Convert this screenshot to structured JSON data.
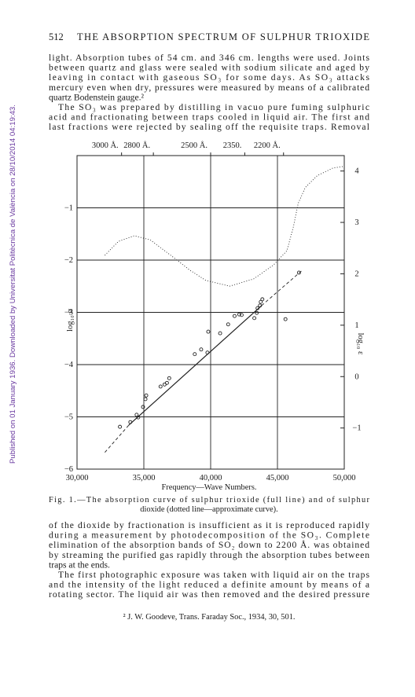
{
  "header": {
    "page_number": "512",
    "running_title": "THE ABSORPTION SPECTRUM OF SULPHUR TRIOXIDE"
  },
  "sidebar": "Published on 01 January 1936. Downloaded by Universitat Politècnica de València on 28/10/2014 04:19:43.",
  "text_before": [
    "light.  Absorption tubes of 54 cm. and 346 cm. lengths were used.  Joints",
    "between quartz and glass were sealed with sodium silicate and aged by",
    "leaving in contact with gaseous SO₃ for some days.  As SO₃ attacks",
    "mercury even when dry, pressures were measured by means of a calibrated",
    "quartz Bodenstein gauge.²",
    "The SO₃ was prepared by distilling in vacuo pure fuming sulphuric",
    "acid and fractionating between traps cooled in liquid air.  The first and",
    "last fractions were rejected by sealing off the requisite traps.  Removal"
  ],
  "chart_data": {
    "type": "line",
    "xlabel": "Frequency—Wave Numbers.",
    "ylabel": "log₁₀ α",
    "y2label": "log₁₀ ε",
    "xlim": [
      30000,
      50000
    ],
    "xticks": [
      {
        "value": 30000,
        "label": "30,000"
      },
      {
        "value": 35000,
        "label": "35,000"
      },
      {
        "value": 40000,
        "label": "40,000"
      },
      {
        "value": 45000,
        "label": "45,000"
      },
      {
        "value": 50000,
        "label": "50,000"
      }
    ],
    "top_ticks": [
      {
        "value": 33333,
        "label": "3000 Å."
      },
      {
        "value": 35714,
        "label": "2800 Å."
      },
      {
        "value": 40000,
        "label": "2500 Å."
      },
      {
        "value": 42553,
        "label": "2350."
      },
      {
        "value": 45455,
        "label": "2200 Å."
      }
    ],
    "ylim": [
      -6,
      0
    ],
    "yticks": [
      {
        "value": -1,
        "label": "−1"
      },
      {
        "value": -2,
        "label": "−2"
      },
      {
        "value": -3,
        "label": "−3"
      },
      {
        "value": -4,
        "label": "−4"
      },
      {
        "value": -5,
        "label": "−5"
      },
      {
        "value": -6,
        "label": "−6"
      }
    ],
    "y2lim": [
      -1.8,
      4.3
    ],
    "y2ticks": [
      4,
      3,
      2,
      1,
      0,
      {
        "value": -1,
        "label": "−1"
      }
    ],
    "grid": true,
    "series": [
      {
        "style": "points",
        "color": "#222222",
        "x": [
          33210,
          33990,
          34460,
          34580,
          34940,
          35120,
          35180,
          36250,
          36550,
          36730,
          36900,
          38810,
          39290,
          39760,
          39820,
          40710,
          41310,
          41790,
          42140,
          42320,
          43270,
          43450,
          43510,
          43690,
          43750,
          43870,
          45600,
          46610
        ],
        "y": [
          -5.19,
          -5.1,
          -4.96,
          -5.01,
          -4.81,
          -4.66,
          -4.59,
          -4.42,
          -4.38,
          -4.35,
          -4.26,
          -3.8,
          -3.71,
          -3.77,
          -3.37,
          -3.4,
          -3.23,
          -3.07,
          -3.04,
          -3.05,
          -3.11,
          -3.01,
          -2.92,
          -2.87,
          -2.8,
          -2.75,
          -3.13,
          -2.24
        ]
      },
      {
        "style": "solid",
        "color": "#222222",
        "x": [
          33870,
          43810
        ],
        "y": [
          -5.16,
          -2.87
        ]
      },
      {
        "style": "dashed",
        "color": "#222222",
        "x": [
          32080,
          33870
        ],
        "y": [
          -5.68,
          -5.16
        ]
      },
      {
        "style": "dashed",
        "color": "#222222",
        "x": [
          43810,
          46790
        ],
        "y": [
          -2.87,
          -2.21
        ]
      },
      {
        "style": "dotted",
        "color": "#222222",
        "axis": "y2",
        "x": [
          32080,
          33100,
          34290,
          35480,
          36960,
          38450,
          39640,
          41430,
          43210,
          44700,
          45710,
          46190,
          46550,
          47080,
          47980,
          49170,
          50000
        ],
        "y": [
          2.36,
          2.63,
          2.74,
          2.66,
          2.37,
          2.07,
          1.87,
          1.76,
          1.9,
          2.17,
          2.45,
          2.91,
          3.37,
          3.68,
          3.91,
          4.06,
          4.09
        ]
      }
    ]
  },
  "caption": [
    "Fig. 1.—The absorption curve of sulphur trioxide (full line) and of sulphur",
    "dioxide (dotted line—approximate curve)."
  ],
  "text_after": [
    "of the dioxide by fractionation is insufficient as it is reproduced rapidly",
    "during a measurement by photodecomposition of the SO₃.  Complete",
    "elimination of the absorption bands of SO₂ down to 2200 Å. was obtained",
    "by streaming the purified gas rapidly through the absorption tubes between",
    "traps at the ends.",
    "The first photographic exposure was taken with liquid air on the traps",
    "and the intensity of the light reduced a definite amount by means of a",
    "rotating sector.  The liquid air was then removed and the desired pressure"
  ],
  "footnote": "² J. W. Goodeve, Trans. Faraday Soc., 1934, 30, 501."
}
